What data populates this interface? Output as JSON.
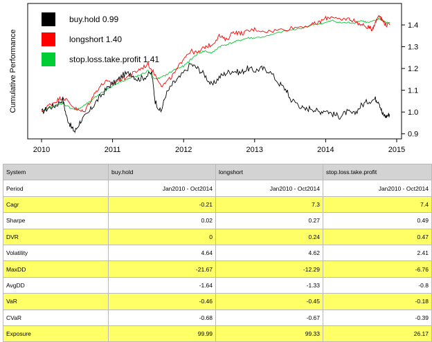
{
  "chart_data": {
    "type": "line",
    "xlabel": "",
    "ylabel": "Cumulative Performance",
    "x_ticks": [
      "2010",
      "2011",
      "2012",
      "2013",
      "2014",
      "2015"
    ],
    "y_ticks": [
      "0.9",
      "1.0",
      "1.1",
      "1.2",
      "1.3",
      "1.4"
    ],
    "xlim": [
      2010.0,
      2015.0
    ],
    "ylim": [
      0.88,
      1.47
    ],
    "y_axis_side": "right",
    "grid": false,
    "legend_position": "top-left",
    "series": [
      {
        "name": "buy.hold",
        "legend": "buy.hold 0.99",
        "color": "#000000",
        "points": [
          [
            2010.0,
            1.0
          ],
          [
            2010.1,
            1.02
          ],
          [
            2010.2,
            1.03
          ],
          [
            2010.3,
            1.06
          ],
          [
            2010.35,
            0.98
          ],
          [
            2010.42,
            0.93
          ],
          [
            2010.47,
            0.91
          ],
          [
            2010.55,
            0.96
          ],
          [
            2010.65,
            0.99
          ],
          [
            2010.75,
            1.04
          ],
          [
            2010.85,
            1.08
          ],
          [
            2010.95,
            1.12
          ],
          [
            2011.05,
            1.14
          ],
          [
            2011.15,
            1.17
          ],
          [
            2011.25,
            1.18
          ],
          [
            2011.35,
            1.15
          ],
          [
            2011.45,
            1.16
          ],
          [
            2011.55,
            1.18
          ],
          [
            2011.6,
            1.05
          ],
          [
            2011.68,
            1.0
          ],
          [
            2011.75,
            1.08
          ],
          [
            2011.85,
            1.13
          ],
          [
            2011.95,
            1.16
          ],
          [
            2012.1,
            1.22
          ],
          [
            2012.2,
            1.2
          ],
          [
            2012.3,
            1.17
          ],
          [
            2012.4,
            1.12
          ],
          [
            2012.5,
            1.16
          ],
          [
            2012.6,
            1.18
          ],
          [
            2012.7,
            1.19
          ],
          [
            2012.8,
            1.18
          ],
          [
            2012.9,
            1.2
          ],
          [
            2013.0,
            1.19
          ],
          [
            2013.1,
            1.2
          ],
          [
            2013.2,
            1.19
          ],
          [
            2013.35,
            1.13
          ],
          [
            2013.45,
            1.1
          ],
          [
            2013.5,
            1.06
          ],
          [
            2013.6,
            1.04
          ],
          [
            2013.7,
            1.01
          ],
          [
            2013.8,
            1.02
          ],
          [
            2013.9,
            1.0
          ],
          [
            2014.0,
            1.01
          ],
          [
            2014.1,
            0.99
          ],
          [
            2014.2,
            0.98
          ],
          [
            2014.3,
            1.0
          ],
          [
            2014.4,
            0.99
          ],
          [
            2014.5,
            1.03
          ],
          [
            2014.6,
            1.05
          ],
          [
            2014.7,
            1.06
          ],
          [
            2014.75,
            1.05
          ],
          [
            2014.8,
            0.99
          ],
          [
            2014.85,
            0.98
          ],
          [
            2014.9,
            0.99
          ]
        ]
      },
      {
        "name": "longshort",
        "legend": "longshort 1.40",
        "color": "#ff0000",
        "points": [
          [
            2010.0,
            1.0
          ],
          [
            2010.1,
            1.03
          ],
          [
            2010.2,
            1.05
          ],
          [
            2010.3,
            1.07
          ],
          [
            2010.4,
            1.04
          ],
          [
            2010.5,
            1.01
          ],
          [
            2010.6,
            1.0
          ],
          [
            2010.7,
            1.06
          ],
          [
            2010.8,
            1.11
          ],
          [
            2010.9,
            1.14
          ],
          [
            2011.0,
            1.13
          ],
          [
            2011.1,
            1.15
          ],
          [
            2011.2,
            1.16
          ],
          [
            2011.3,
            1.18
          ],
          [
            2011.4,
            1.2
          ],
          [
            2011.5,
            1.22
          ],
          [
            2011.6,
            1.17
          ],
          [
            2011.7,
            1.12
          ],
          [
            2011.8,
            1.15
          ],
          [
            2011.9,
            1.19
          ],
          [
            2012.0,
            1.25
          ],
          [
            2012.1,
            1.28
          ],
          [
            2012.2,
            1.27
          ],
          [
            2012.3,
            1.3
          ],
          [
            2012.4,
            1.31
          ],
          [
            2012.5,
            1.35
          ],
          [
            2012.6,
            1.33
          ],
          [
            2012.7,
            1.37
          ],
          [
            2012.8,
            1.36
          ],
          [
            2012.9,
            1.37
          ],
          [
            2013.0,
            1.38
          ],
          [
            2013.2,
            1.37
          ],
          [
            2013.4,
            1.38
          ],
          [
            2013.6,
            1.39
          ],
          [
            2013.8,
            1.4
          ],
          [
            2013.9,
            1.41
          ],
          [
            2014.0,
            1.43
          ],
          [
            2014.1,
            1.44
          ],
          [
            2014.2,
            1.42
          ],
          [
            2014.3,
            1.43
          ],
          [
            2014.4,
            1.42
          ],
          [
            2014.5,
            1.4
          ],
          [
            2014.6,
            1.39
          ],
          [
            2014.65,
            1.38
          ],
          [
            2014.7,
            1.41
          ],
          [
            2014.75,
            1.45
          ],
          [
            2014.8,
            1.42
          ],
          [
            2014.85,
            1.4
          ],
          [
            2014.9,
            1.4
          ]
        ]
      },
      {
        "name": "stop.loss.take.profit",
        "legend": "stop.loss.take.profit 1.41",
        "color": "#00cc33",
        "points": [
          [
            2010.0,
            1.0
          ],
          [
            2010.1,
            1.02
          ],
          [
            2010.2,
            1.03
          ],
          [
            2010.3,
            1.04
          ],
          [
            2010.4,
            1.02
          ],
          [
            2010.5,
            1.01
          ],
          [
            2010.6,
            1.03
          ],
          [
            2010.7,
            1.05
          ],
          [
            2010.8,
            1.08
          ],
          [
            2010.9,
            1.1
          ],
          [
            2011.0,
            1.12
          ],
          [
            2011.1,
            1.14
          ],
          [
            2011.2,
            1.15
          ],
          [
            2011.3,
            1.16
          ],
          [
            2011.4,
            1.17
          ],
          [
            2011.5,
            1.19
          ],
          [
            2011.6,
            1.15
          ],
          [
            2011.7,
            1.16
          ],
          [
            2011.8,
            1.18
          ],
          [
            2011.9,
            1.2
          ],
          [
            2012.0,
            1.21
          ],
          [
            2012.1,
            1.24
          ],
          [
            2012.2,
            1.27
          ],
          [
            2012.3,
            1.28
          ],
          [
            2012.4,
            1.27
          ],
          [
            2012.5,
            1.3
          ],
          [
            2012.6,
            1.31
          ],
          [
            2012.7,
            1.32
          ],
          [
            2012.8,
            1.33
          ],
          [
            2012.9,
            1.34
          ],
          [
            2013.0,
            1.34
          ],
          [
            2013.2,
            1.35
          ],
          [
            2013.4,
            1.37
          ],
          [
            2013.6,
            1.38
          ],
          [
            2013.8,
            1.4
          ],
          [
            2014.0,
            1.41
          ],
          [
            2014.1,
            1.42
          ],
          [
            2014.2,
            1.41
          ],
          [
            2014.3,
            1.41
          ],
          [
            2014.4,
            1.41
          ],
          [
            2014.5,
            1.42
          ],
          [
            2014.6,
            1.41
          ],
          [
            2014.7,
            1.42
          ],
          [
            2014.75,
            1.43
          ],
          [
            2014.8,
            1.42
          ],
          [
            2014.85,
            1.41
          ],
          [
            2014.9,
            1.41
          ]
        ]
      }
    ]
  },
  "table": {
    "header": [
      "System",
      "buy.hold",
      "longshort",
      "stop.loss.take.profit"
    ],
    "rows": [
      {
        "label": "Period",
        "values": [
          "Jan2010 - Oct2014",
          "Jan2010 - Oct2014",
          "Jan2010 - Oct2014"
        ],
        "highlight": false
      },
      {
        "label": "Cagr",
        "values": [
          "-0.21",
          "7.3",
          "7.4"
        ],
        "highlight": true
      },
      {
        "label": "Sharpe",
        "values": [
          "0.02",
          "0.27",
          "0.49"
        ],
        "highlight": false
      },
      {
        "label": "DVR",
        "values": [
          "0",
          "0.24",
          "0.47"
        ],
        "highlight": true
      },
      {
        "label": "Volatility",
        "values": [
          "4.64",
          "4.62",
          "2.41"
        ],
        "highlight": false
      },
      {
        "label": "MaxDD",
        "values": [
          "-21.67",
          "-12.29",
          "-6.76"
        ],
        "highlight": true
      },
      {
        "label": "AvgDD",
        "values": [
          "-1.64",
          "-1.33",
          "-0.8"
        ],
        "highlight": false
      },
      {
        "label": "VaR",
        "values": [
          "-0.46",
          "-0.45",
          "-0.18"
        ],
        "highlight": true
      },
      {
        "label": "CVaR",
        "values": [
          "-0.68",
          "-0.67",
          "-0.39"
        ],
        "highlight": false
      },
      {
        "label": "Exposure",
        "values": [
          "99.99",
          "99.33",
          "26.17"
        ],
        "highlight": true
      }
    ],
    "highlight_color": "#ffff66",
    "header_color": "#d3d3d3"
  }
}
